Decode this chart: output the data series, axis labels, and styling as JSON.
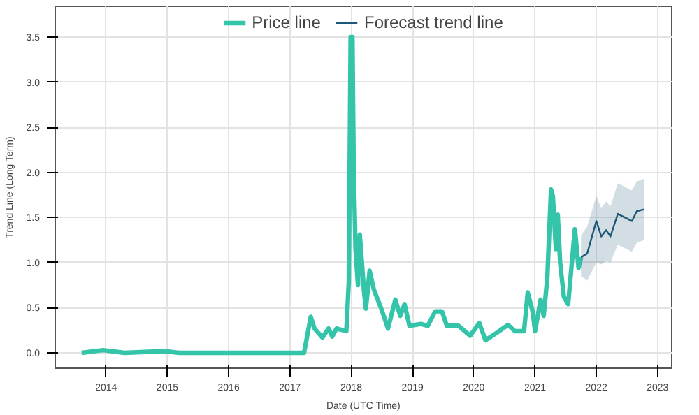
{
  "chart_data": {
    "type": "line",
    "xlabel": "Date (UTC Time)",
    "ylabel": "Trend Line (Long Term)",
    "xlim": [
      2013.17,
      2023.23
    ],
    "ylim": [
      -0.17,
      3.84
    ],
    "xticks": [
      2014,
      2015,
      2016,
      2017,
      2018,
      2019,
      2020,
      2021,
      2022,
      2023
    ],
    "yticks": [
      {
        "value": 0,
        "label": "0.0"
      },
      0.5,
      {
        "value": 1,
        "label": "1.0"
      },
      1.5,
      {
        "value": 2,
        "label": "2.0"
      },
      2.5,
      {
        "value": 3,
        "label": "3.0"
      },
      3.5
    ],
    "grid": true,
    "legend": "top",
    "line_style": "solid",
    "series": [
      {
        "name": "Price line",
        "color": "#33c4aa",
        "x": [
          2013.6,
          2013.95,
          2014.3,
          2014.95,
          2015.2,
          2017.0,
          2017.23,
          2017.34,
          2017.4,
          2017.53,
          2017.63,
          2017.69,
          2017.76,
          2017.92,
          2017.96,
          2017.99,
          2018.02,
          2018.04,
          2018.07,
          2018.11,
          2018.14,
          2018.21,
          2018.24,
          2018.3,
          2018.37,
          2018.49,
          2018.6,
          2018.72,
          2018.8,
          2018.87,
          2018.95,
          2019.14,
          2019.25,
          2019.37,
          2019.48,
          2019.56,
          2019.75,
          2019.94,
          2020.09,
          2020.19,
          2020.37,
          2020.56,
          2020.67,
          2020.82,
          2020.88,
          2020.96,
          2021.0,
          2021.09,
          2021.14,
          2021.2,
          2021.26,
          2021.29,
          2021.34,
          2021.37,
          2021.41,
          2021.47,
          2021.54,
          2021.62,
          2021.65,
          2021.71,
          2021.75
        ],
        "values": [
          0.0,
          0.03,
          0.0,
          0.02,
          0.0,
          0.0,
          0.0,
          0.4,
          0.27,
          0.17,
          0.27,
          0.18,
          0.27,
          0.24,
          0.78,
          3.5,
          3.5,
          2.06,
          1.15,
          0.75,
          1.31,
          0.67,
          0.49,
          0.91,
          0.7,
          0.49,
          0.27,
          0.59,
          0.41,
          0.54,
          0.3,
          0.32,
          0.3,
          0.46,
          0.46,
          0.3,
          0.3,
          0.19,
          0.33,
          0.14,
          0.22,
          0.31,
          0.24,
          0.24,
          0.67,
          0.46,
          0.24,
          0.59,
          0.41,
          0.83,
          1.81,
          1.74,
          1.15,
          1.53,
          0.99,
          0.62,
          0.54,
          1.15,
          1.37,
          0.94,
          1.06
        ]
      },
      {
        "name": "Forecast trend line",
        "color": "#1d5878",
        "x": [
          2021.75,
          2021.85,
          2022.0,
          2022.08,
          2022.16,
          2022.23,
          2022.35,
          2022.58,
          2022.66,
          2022.78
        ],
        "values": [
          1.06,
          1.1,
          1.46,
          1.29,
          1.36,
          1.29,
          1.54,
          1.46,
          1.57,
          1.59
        ],
        "lower": [
          0.85,
          0.8,
          1.0,
          0.98,
          1.02,
          1.0,
          1.2,
          1.12,
          1.22,
          1.25
        ],
        "upper": [
          1.3,
          1.4,
          1.74,
          1.6,
          1.68,
          1.62,
          1.88,
          1.8,
          1.9,
          1.93
        ]
      }
    ]
  }
}
